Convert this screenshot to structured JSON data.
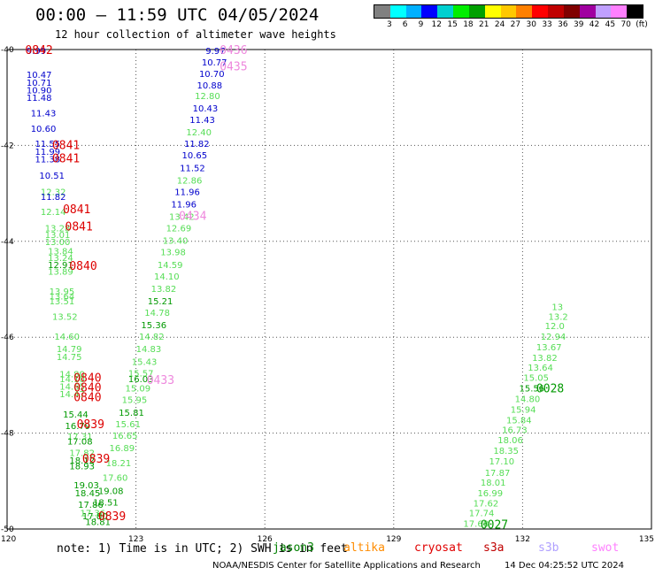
{
  "header": {
    "title": "00:00 – 11:59 UTC 04/05/2024",
    "subtitle": "12 hour collection of altimeter wave heights"
  },
  "legend": {
    "colors": [
      "#808080",
      "#00ffff",
      "#00b0ff",
      "#0000ff",
      "#00d0d0",
      "#00ee00",
      "#00a000",
      "#ffff00",
      "#ffc800",
      "#ff8000",
      "#ff0000",
      "#c00000",
      "#800000",
      "#a000a0",
      "#c0a0ff",
      "#ff80ff",
      "#000000"
    ],
    "labels": [
      "3",
      "6",
      "9",
      "12",
      "15",
      "18",
      "21",
      "24",
      "27",
      "30",
      "33",
      "36",
      "39",
      "42",
      "45",
      "70",
      "(ft)"
    ]
  },
  "axes": {
    "x_ticks": [
      "120",
      "123",
      "126",
      "129",
      "132",
      "135"
    ],
    "y_ticks": [
      "-40",
      "-42",
      "-44",
      "-46",
      "-48",
      "-50"
    ]
  },
  "footer": {
    "note": "note:  1) Time is in UTC; 2) SWH is in feet",
    "missions": [
      {
        "label": "jason3",
        "color": "#008000"
      },
      {
        "label": "altika",
        "color": "#ff8c00"
      },
      {
        "label": "cryosat",
        "color": "#e00000"
      },
      {
        "label": "s3a",
        "color": "#c00000"
      },
      {
        "label": "s3b",
        "color": "#b0a0ff"
      },
      {
        "label": "swot",
        "color": "#ff80ff"
      }
    ],
    "credit": "NOAA/NESDIS Center for Satellite Applications and Research",
    "timestamp": "14 Dec 04:25:52 UTC 2024"
  },
  "map": {
    "colors": {
      "blue": "#0000cc",
      "lightgreen": "#55dd55",
      "darkgreen": "#009900",
      "red": "#dd0000",
      "pink": "#ee88dd"
    },
    "values": [
      {
        "t": "9.99",
        "c": "blue",
        "lon": 120.45,
        "lat": -40.02
      },
      {
        "t": "10.47",
        "c": "blue",
        "lon": 120.45,
        "lat": -40.52
      },
      {
        "t": "10.71",
        "c": "blue",
        "lon": 120.45,
        "lat": -40.68
      },
      {
        "t": "10.90",
        "c": "blue",
        "lon": 120.45,
        "lat": -40.84
      },
      {
        "t": "11.48",
        "c": "blue",
        "lon": 120.45,
        "lat": -41.0
      },
      {
        "t": "11.43",
        "c": "blue",
        "lon": 120.55,
        "lat": -41.32
      },
      {
        "t": "10.60",
        "c": "blue",
        "lon": 120.55,
        "lat": -41.64
      },
      {
        "t": "11.55",
        "c": "blue",
        "lon": 120.65,
        "lat": -41.96
      },
      {
        "t": "11.99",
        "c": "blue",
        "lon": 120.65,
        "lat": -42.12
      },
      {
        "t": "11.38",
        "c": "blue",
        "lon": 120.65,
        "lat": -42.28
      },
      {
        "t": "10.51",
        "c": "blue",
        "lon": 120.75,
        "lat": -42.62
      },
      {
        "t": "12.32",
        "c": "lightgreen",
        "lon": 120.78,
        "lat": -42.96
      },
      {
        "t": "11.82",
        "c": "blue",
        "lon": 120.78,
        "lat": -43.06
      },
      {
        "t": "12.14",
        "c": "lightgreen",
        "lon": 120.78,
        "lat": -43.38
      },
      {
        "t": "13.28",
        "c": "lightgreen",
        "lon": 120.88,
        "lat": -43.72
      },
      {
        "t": "13.01",
        "c": "lightgreen",
        "lon": 120.88,
        "lat": -43.86
      },
      {
        "t": "13.00",
        "c": "lightgreen",
        "lon": 120.88,
        "lat": -44.0
      },
      {
        "t": "13.84",
        "c": "lightgreen",
        "lon": 120.95,
        "lat": -44.2
      },
      {
        "t": "13.24",
        "c": "lightgreen",
        "lon": 120.95,
        "lat": -44.34
      },
      {
        "t": "12.91",
        "c": "darkgreen",
        "lon": 120.95,
        "lat": -44.48
      },
      {
        "t": "13.89",
        "c": "lightgreen",
        "lon": 120.95,
        "lat": -44.62
      },
      {
        "t": "13.95",
        "c": "lightgreen",
        "lon": 120.98,
        "lat": -45.04
      },
      {
        "t": "13.64",
        "c": "lightgreen",
        "lon": 120.98,
        "lat": -45.14
      },
      {
        "t": "13.51",
        "c": "lightgreen",
        "lon": 120.98,
        "lat": -45.24
      },
      {
        "t": "13.52",
        "c": "lightgreen",
        "lon": 121.05,
        "lat": -45.56
      },
      {
        "t": "14.60",
        "c": "lightgreen",
        "lon": 121.1,
        "lat": -45.98
      },
      {
        "t": "14.79",
        "c": "lightgreen",
        "lon": 121.15,
        "lat": -46.24
      },
      {
        "t": "14.75",
        "c": "lightgreen",
        "lon": 121.15,
        "lat": -46.4
      },
      {
        "t": "14.80",
        "c": "lightgreen",
        "lon": 121.22,
        "lat": -46.76
      },
      {
        "t": "14.10",
        "c": "lightgreen",
        "lon": 121.22,
        "lat": -46.86
      },
      {
        "t": "14.65",
        "c": "lightgreen",
        "lon": 121.22,
        "lat": -47.02
      },
      {
        "t": "14.47",
        "c": "lightgreen",
        "lon": 121.22,
        "lat": -47.18
      },
      {
        "t": "15.44",
        "c": "darkgreen",
        "lon": 121.3,
        "lat": -47.6
      },
      {
        "t": "16.79",
        "c": "darkgreen",
        "lon": 121.35,
        "lat": -47.84
      },
      {
        "t": "17.31",
        "c": "lightgreen",
        "lon": 121.4,
        "lat": -48.06
      },
      {
        "t": "17.08",
        "c": "darkgreen",
        "lon": 121.4,
        "lat": -48.16
      },
      {
        "t": "17.82",
        "c": "lightgreen",
        "lon": 121.45,
        "lat": -48.4
      },
      {
        "t": "18.12",
        "c": "darkgreen",
        "lon": 121.45,
        "lat": -48.56
      },
      {
        "t": "18.93",
        "c": "darkgreen",
        "lon": 121.45,
        "lat": -48.68
      },
      {
        "t": "19.03",
        "c": "darkgreen",
        "lon": 121.55,
        "lat": -49.08
      },
      {
        "t": "18.45",
        "c": "darkgreen",
        "lon": 121.58,
        "lat": -49.24
      },
      {
        "t": "17.86",
        "c": "darkgreen",
        "lon": 121.65,
        "lat": -49.48
      },
      {
        "t": "17.36",
        "c": "lightgreen",
        "lon": 121.7,
        "lat": -49.66
      },
      {
        "t": "17.80",
        "c": "darkgreen",
        "lon": 121.75,
        "lat": -49.72
      },
      {
        "t": "18.81",
        "c": "darkgreen",
        "lon": 121.82,
        "lat": -49.84
      },
      {
        "t": "18.51",
        "c": "darkgreen",
        "lon": 122.0,
        "lat": -49.44
      },
      {
        "t": "19.08",
        "c": "darkgreen",
        "lon": 122.12,
        "lat": -49.2
      },
      {
        "t": "17.60",
        "c": "lightgreen",
        "lon": 122.22,
        "lat": -48.92
      },
      {
        "t": "18.21",
        "c": "lightgreen",
        "lon": 122.3,
        "lat": -48.62
      },
      {
        "t": "16.89",
        "c": "lightgreen",
        "lon": 122.38,
        "lat": -48.3
      },
      {
        "t": "16.65",
        "c": "lightgreen",
        "lon": 122.45,
        "lat": -48.04
      },
      {
        "t": "15.61",
        "c": "lightgreen",
        "lon": 122.52,
        "lat": -47.8
      },
      {
        "t": "15.81",
        "c": "darkgreen",
        "lon": 122.6,
        "lat": -47.56
      },
      {
        "t": "15.95",
        "c": "lightgreen",
        "lon": 122.67,
        "lat": -47.3
      },
      {
        "t": "15.09",
        "c": "lightgreen",
        "lon": 122.75,
        "lat": -47.06
      },
      {
        "t": "15.57",
        "c": "lightgreen",
        "lon": 122.82,
        "lat": -46.74
      },
      {
        "t": "16.03",
        "c": "darkgreen",
        "lon": 122.82,
        "lat": -46.86
      },
      {
        "t": "15.43",
        "c": "lightgreen",
        "lon": 122.9,
        "lat": -46.5
      },
      {
        "t": "14.83",
        "c": "lightgreen",
        "lon": 123.0,
        "lat": -46.24
      },
      {
        "t": "14.82",
        "c": "lightgreen",
        "lon": 123.07,
        "lat": -45.98
      },
      {
        "t": "15.36",
        "c": "darkgreen",
        "lon": 123.12,
        "lat": -45.74
      },
      {
        "t": "14.78",
        "c": "lightgreen",
        "lon": 123.2,
        "lat": -45.48
      },
      {
        "t": "15.21",
        "c": "darkgreen",
        "lon": 123.27,
        "lat": -45.24
      },
      {
        "t": "13.82",
        "c": "lightgreen",
        "lon": 123.35,
        "lat": -44.98
      },
      {
        "t": "14.10",
        "c": "lightgreen",
        "lon": 123.42,
        "lat": -44.72
      },
      {
        "t": "14.59",
        "c": "lightgreen",
        "lon": 123.5,
        "lat": -44.48
      },
      {
        "t": "13.98",
        "c": "lightgreen",
        "lon": 123.57,
        "lat": -44.22
      },
      {
        "t": "13.40",
        "c": "lightgreen",
        "lon": 123.62,
        "lat": -43.98
      },
      {
        "t": "12.69",
        "c": "lightgreen",
        "lon": 123.7,
        "lat": -43.72
      },
      {
        "t": "13.42",
        "c": "lightgreen",
        "lon": 123.77,
        "lat": -43.48
      },
      {
        "t": "11.96",
        "c": "blue",
        "lon": 123.82,
        "lat": -43.22
      },
      {
        "t": "11.96",
        "c": "blue",
        "lon": 123.9,
        "lat": -42.96
      },
      {
        "t": "12.86",
        "c": "lightgreen",
        "lon": 123.95,
        "lat": -42.72
      },
      {
        "t": "11.52",
        "c": "blue",
        "lon": 124.02,
        "lat": -42.46
      },
      {
        "t": "10.65",
        "c": "blue",
        "lon": 124.07,
        "lat": -42.2
      },
      {
        "t": "11.82",
        "c": "blue",
        "lon": 124.12,
        "lat": -41.96
      },
      {
        "t": "12.40",
        "c": "lightgreen",
        "lon": 124.17,
        "lat": -41.72
      },
      {
        "t": "11.43",
        "c": "blue",
        "lon": 124.25,
        "lat": -41.46
      },
      {
        "t": "10.43",
        "c": "blue",
        "lon": 124.32,
        "lat": -41.22
      },
      {
        "t": "12.80",
        "c": "lightgreen",
        "lon": 124.37,
        "lat": -40.96
      },
      {
        "t": "10.88",
        "c": "blue",
        "lon": 124.42,
        "lat": -40.74
      },
      {
        "t": "10.70",
        "c": "blue",
        "lon": 124.47,
        "lat": -40.5
      },
      {
        "t": "10.77",
        "c": "blue",
        "lon": 124.53,
        "lat": -40.26
      },
      {
        "t": "9.97",
        "c": "blue",
        "lon": 124.62,
        "lat": -40.02
      },
      {
        "t": "17.68",
        "c": "lightgreen",
        "lon": 130.62,
        "lat": -49.88
      },
      {
        "t": "17.74",
        "c": "lightgreen",
        "lon": 130.75,
        "lat": -49.66
      },
      {
        "t": "17.62",
        "c": "lightgreen",
        "lon": 130.85,
        "lat": -49.46
      },
      {
        "t": "16.99",
        "c": "lightgreen",
        "lon": 130.95,
        "lat": -49.24
      },
      {
        "t": "18.01",
        "c": "lightgreen",
        "lon": 131.02,
        "lat": -49.02
      },
      {
        "t": "17.87",
        "c": "lightgreen",
        "lon": 131.12,
        "lat": -48.82
      },
      {
        "t": "17.10",
        "c": "lightgreen",
        "lon": 131.22,
        "lat": -48.58
      },
      {
        "t": "18.35",
        "c": "lightgreen",
        "lon": 131.32,
        "lat": -48.36
      },
      {
        "t": "18.06",
        "c": "lightgreen",
        "lon": 131.42,
        "lat": -48.14
      },
      {
        "t": "16.73",
        "c": "lightgreen",
        "lon": 131.52,
        "lat": -47.92
      },
      {
        "t": "15.84",
        "c": "lightgreen",
        "lon": 131.62,
        "lat": -47.72
      },
      {
        "t": "15.94",
        "c": "lightgreen",
        "lon": 131.72,
        "lat": -47.5
      },
      {
        "t": "14.80",
        "c": "lightgreen",
        "lon": 131.82,
        "lat": -47.28
      },
      {
        "t": "15.56",
        "c": "darkgreen",
        "lon": 131.92,
        "lat": -47.06
      },
      {
        "t": "15.05",
        "c": "lightgreen",
        "lon": 132.02,
        "lat": -46.84
      },
      {
        "t": "13.64",
        "c": "lightgreen",
        "lon": 132.12,
        "lat": -46.62
      },
      {
        "t": "13.82",
        "c": "lightgreen",
        "lon": 132.22,
        "lat": -46.42
      },
      {
        "t": "13.67",
        "c": "lightgreen",
        "lon": 132.32,
        "lat": -46.2
      },
      {
        "t": "12.94",
        "c": "lightgreen",
        "lon": 132.42,
        "lat": -45.98
      },
      {
        "t": "12.0",
        "c": "lightgreen",
        "lon": 132.52,
        "lat": -45.76
      },
      {
        "t": "13.2",
        "c": "lightgreen",
        "lon": 132.6,
        "lat": -45.56
      },
      {
        "t": "13",
        "c": "lightgreen",
        "lon": 132.68,
        "lat": -45.36
      }
    ],
    "passes": [
      {
        "t": "0842",
        "c": "red",
        "lon": 120.42,
        "lat": -40.0
      },
      {
        "t": "0841",
        "c": "red",
        "lon": 121.05,
        "lat": -41.98
      },
      {
        "t": "0841",
        "c": "red",
        "lon": 121.05,
        "lat": -42.26
      },
      {
        "t": "0841",
        "c": "red",
        "lon": 121.3,
        "lat": -43.32
      },
      {
        "t": "0841",
        "c": "red",
        "lon": 121.35,
        "lat": -43.68
      },
      {
        "t": "0840",
        "c": "red",
        "lon": 121.45,
        "lat": -44.5
      },
      {
        "t": "0840",
        "c": "red",
        "lon": 121.55,
        "lat": -46.84
      },
      {
        "t": "0840",
        "c": "red",
        "lon": 121.55,
        "lat": -47.04
      },
      {
        "t": "0840",
        "c": "red",
        "lon": 121.55,
        "lat": -47.24
      },
      {
        "t": "0839",
        "c": "red",
        "lon": 121.62,
        "lat": -47.8
      },
      {
        "t": "0839",
        "c": "red",
        "lon": 121.75,
        "lat": -48.52
      },
      {
        "t": "0839",
        "c": "red",
        "lon": 122.12,
        "lat": -49.72
      },
      {
        "t": "0436",
        "c": "pink",
        "lon": 124.95,
        "lat": -40.0
      },
      {
        "t": "0435",
        "c": "pink",
        "lon": 124.95,
        "lat": -40.34
      },
      {
        "t": "0434",
        "c": "pink",
        "lon": 124.0,
        "lat": -43.46
      },
      {
        "t": "0433",
        "c": "pink",
        "lon": 123.25,
        "lat": -46.88
      },
      {
        "t": "0028",
        "c": "darkgreen",
        "lon": 132.32,
        "lat": -47.06
      },
      {
        "t": "0027",
        "c": "darkgreen",
        "lon": 131.02,
        "lat": -49.9
      }
    ]
  }
}
